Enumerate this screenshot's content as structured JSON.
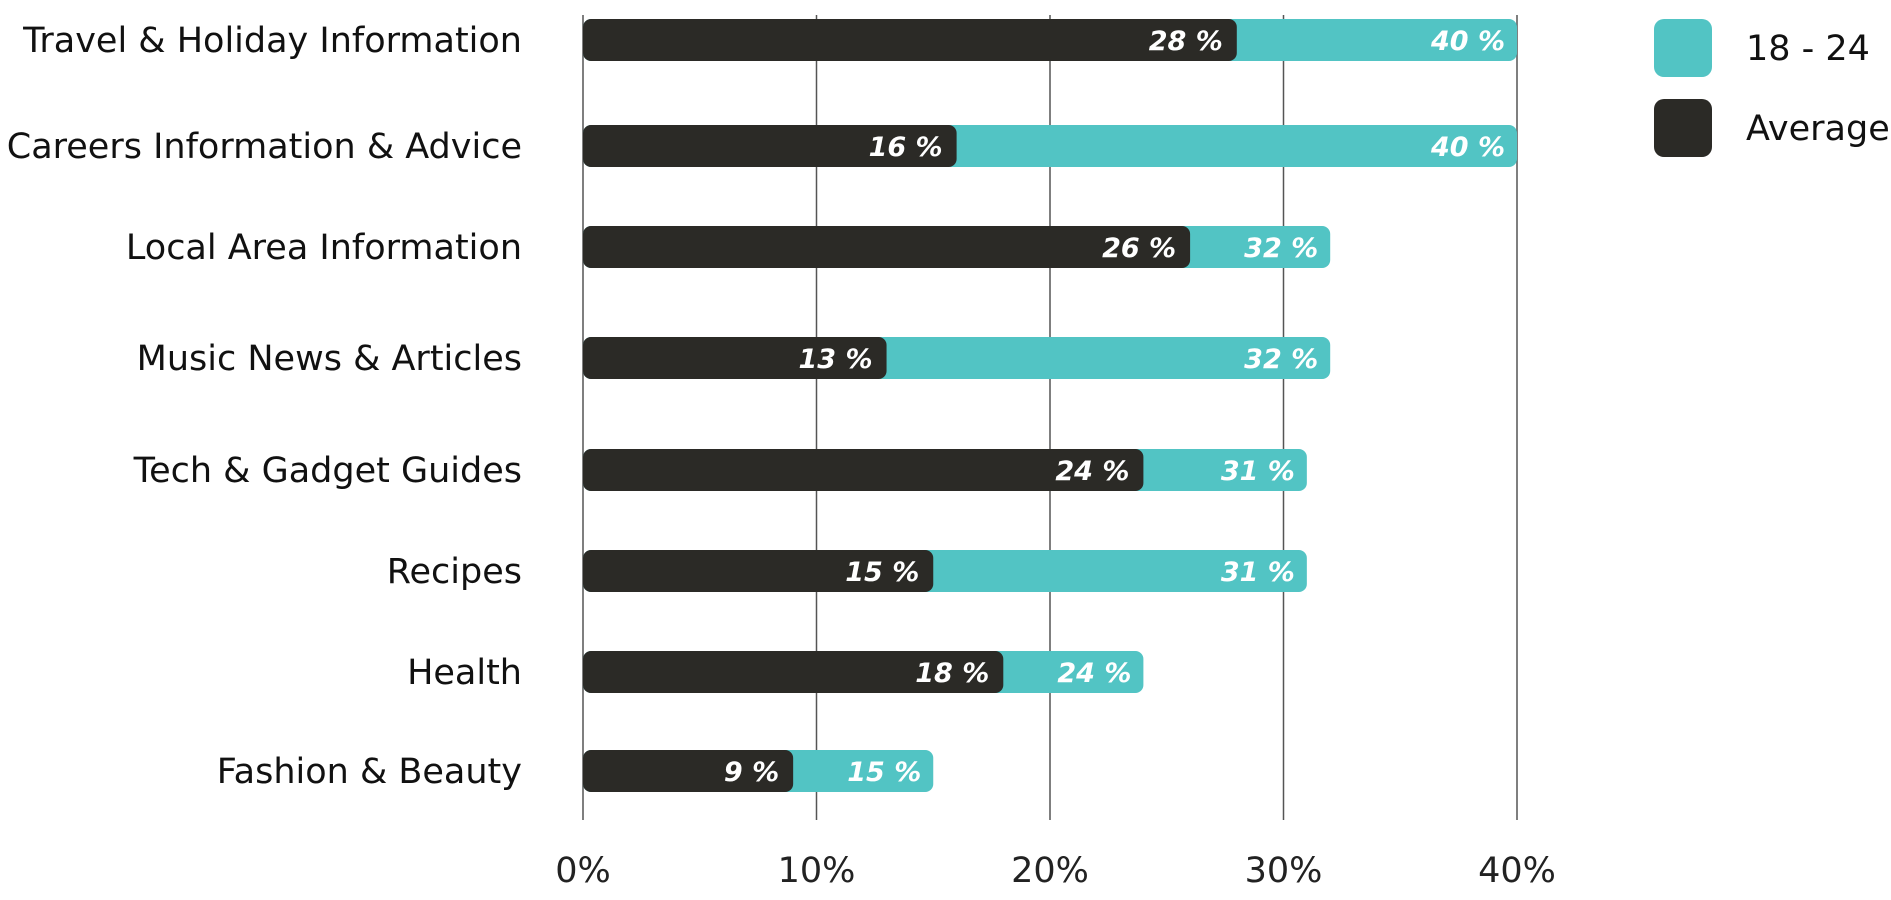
{
  "chart_data": {
    "type": "bar",
    "orientation": "horizontal",
    "overlapping_bars": true,
    "categories": [
      "Travel & Holiday Information",
      "Careers Information & Advice",
      "Local Area Information",
      "Music News & Articles",
      "Tech & Gadget Guides",
      "Recipes",
      "Health",
      "Fashion & Beauty"
    ],
    "series": [
      {
        "name": "18 - 24",
        "color": "#52c4c4",
        "values": [
          40,
          40,
          32,
          32,
          31,
          31,
          24,
          15
        ],
        "labels": [
          "40 %",
          "40 %",
          "32 %",
          "32 %",
          "31 %",
          "31 %",
          "24 %",
          "15 %"
        ]
      },
      {
        "name": "Average",
        "color": "#2b2a26",
        "values": [
          28,
          16,
          26,
          13,
          24,
          15,
          18,
          9
        ],
        "labels": [
          "28 %",
          "16 %",
          "26 %",
          "13 %",
          "24 %",
          "15 %",
          "18 %",
          "9 %"
        ]
      }
    ],
    "xlim": [
      0,
      40
    ],
    "x_ticks": [
      0,
      10,
      20,
      30,
      40
    ],
    "x_tick_labels": [
      "0%",
      "10%",
      "20%",
      "30%",
      "40%"
    ],
    "grid": true,
    "legend_position": "top-right"
  }
}
